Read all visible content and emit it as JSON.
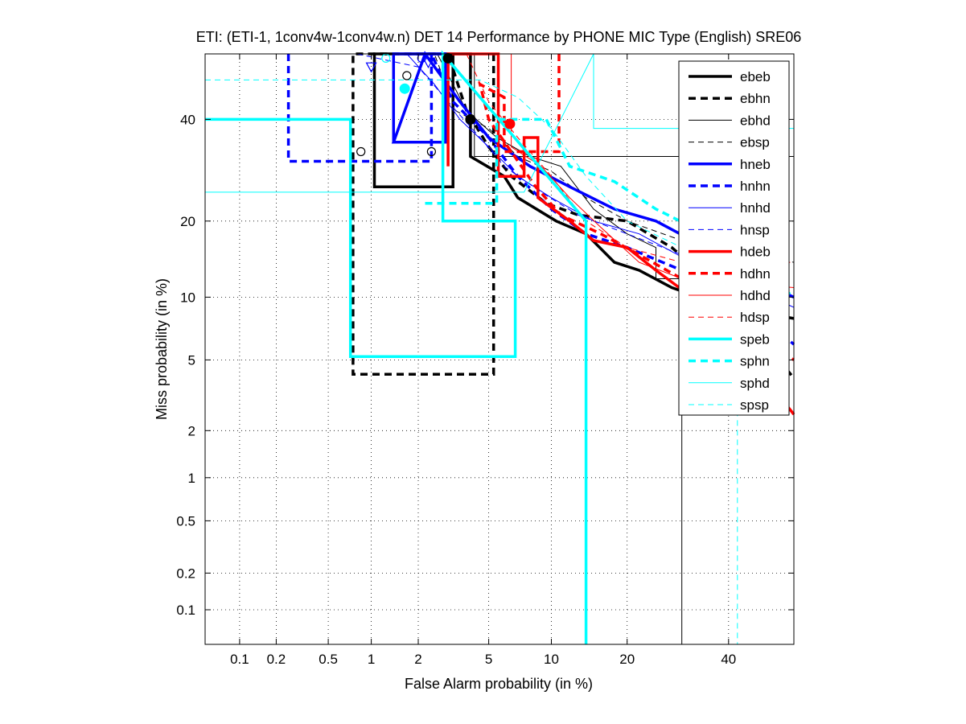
{
  "chart_data": {
    "type": "line",
    "title": "ETI: (ETI-1, 1conv4w-1conv4w.n) DET 14 Performance by PHONE MIC Type (English) SRE06",
    "xlabel": "False Alarm probability (in %)",
    "ylabel": "Miss probability (in %)",
    "xscale": "probit",
    "yscale": "probit",
    "xlim": [
      0.05,
      55
    ],
    "ylim": [
      0.05,
      55
    ],
    "xticks": [
      0.1,
      0.2,
      0.5,
      1,
      2,
      5,
      10,
      20,
      40
    ],
    "xtick_labels": [
      "0.1",
      "0.2",
      "0.5",
      "1",
      "2",
      "5",
      "10",
      "20",
      "40"
    ],
    "yticks": [
      0.1,
      0.2,
      0.5,
      1,
      2,
      5,
      10,
      20,
      40
    ],
    "ytick_labels": [
      "0.1",
      "0.2",
      "0.5",
      "1",
      "2",
      "5",
      "10",
      "20",
      "40"
    ],
    "grid": true,
    "legend_position": "top-right",
    "series": [
      {
        "name": "ebeb",
        "color": "#000000",
        "style": "solid",
        "width": 3.5,
        "points": [
          [
            3.2,
            55
          ],
          [
            3.2,
            26
          ],
          [
            1.05,
            26
          ],
          [
            1.05,
            55
          ],
          [
            4.0,
            55
          ],
          [
            4.0,
            32
          ],
          [
            6.0,
            28
          ],
          [
            7.0,
            24
          ],
          [
            10.5,
            20
          ],
          [
            14,
            18
          ],
          [
            18,
            14
          ],
          [
            22,
            13
          ],
          [
            28,
            11
          ],
          [
            40,
            9
          ],
          [
            55,
            8
          ]
        ]
      },
      {
        "name": "ebhn",
        "color": "#000000",
        "style": "dashed",
        "width": 3.5,
        "points": [
          [
            5.3,
            55
          ],
          [
            5.3,
            4.2
          ],
          [
            0.75,
            4.2
          ],
          [
            0.75,
            55
          ],
          [
            3.0,
            55
          ],
          [
            3.8,
            42
          ],
          [
            5.0,
            34
          ],
          [
            6.5,
            28
          ],
          [
            9.5,
            23
          ],
          [
            13,
            21
          ],
          [
            20,
            20
          ],
          [
            28,
            16
          ],
          [
            40,
            10
          ],
          [
            55,
            4
          ]
        ]
      },
      {
        "name": "ebhd",
        "color": "#000000",
        "style": "solid",
        "width": 1,
        "points": [
          [
            30,
            0.05
          ],
          [
            30,
            12
          ],
          [
            25,
            12
          ],
          [
            25,
            16
          ],
          [
            20,
            18
          ],
          [
            15,
            22
          ],
          [
            11,
            30
          ],
          [
            8,
            32
          ],
          [
            5.5,
            36
          ],
          [
            3.8,
            42
          ],
          [
            2.6,
            55
          ],
          [
            4.2,
            55
          ],
          [
            4.2,
            32
          ],
          [
            11,
            32
          ],
          [
            40,
            32
          ],
          [
            55,
            32
          ]
        ]
      },
      {
        "name": "ebsp",
        "color": "#000000",
        "style": "dashed",
        "width": 1,
        "points": [
          [
            0.05,
            55
          ],
          [
            1.0,
            55
          ],
          [
            2.5,
            55
          ],
          [
            3.3,
            42
          ],
          [
            5,
            38
          ],
          [
            7,
            32
          ],
          [
            10,
            29
          ],
          [
            14,
            24
          ],
          [
            20,
            20
          ],
          [
            30,
            17
          ],
          [
            55,
            14
          ]
        ]
      },
      {
        "name": "hneb",
        "color": "#0000ff",
        "style": "solid",
        "width": 3.5,
        "points": [
          [
            1.4,
            35
          ],
          [
            1.4,
            55
          ],
          [
            2.9,
            55
          ],
          [
            2.9,
            35
          ],
          [
            1.4,
            35
          ],
          [
            2.2,
            55
          ],
          [
            3.5,
            44
          ],
          [
            5,
            36
          ],
          [
            8,
            30
          ],
          [
            12,
            26
          ],
          [
            18,
            22
          ],
          [
            25,
            20
          ],
          [
            35,
            16
          ],
          [
            45,
            12
          ],
          [
            55,
            10
          ]
        ]
      },
      {
        "name": "hnhn",
        "color": "#0000ff",
        "style": "dashed",
        "width": 3.5,
        "points": [
          [
            0.25,
            55
          ],
          [
            0.25,
            31
          ],
          [
            2.4,
            31
          ],
          [
            2.4,
            55
          ],
          [
            3.2,
            44
          ],
          [
            5,
            36
          ],
          [
            7,
            28
          ],
          [
            10,
            22
          ],
          [
            14,
            18
          ],
          [
            20,
            16
          ],
          [
            30,
            13
          ],
          [
            45,
            9
          ],
          [
            55,
            6
          ]
        ]
      },
      {
        "name": "hnhd",
        "color": "#0000ff",
        "style": "solid",
        "width": 1,
        "points": [
          [
            1.7,
            55
          ],
          [
            2.5,
            48
          ],
          [
            3.5,
            40
          ],
          [
            5,
            34
          ],
          [
            7,
            28
          ],
          [
            10,
            24
          ],
          [
            15,
            20
          ],
          [
            22,
            18
          ],
          [
            32,
            14
          ],
          [
            45,
            11
          ],
          [
            55,
            9
          ]
        ]
      },
      {
        "name": "hnsp",
        "color": "#0000ff",
        "style": "dashed",
        "width": 1,
        "points": [
          [
            0.8,
            55
          ],
          [
            2.0,
            52
          ],
          [
            3.0,
            44
          ],
          [
            4.5,
            36
          ],
          [
            6,
            30
          ],
          [
            9,
            25
          ],
          [
            13,
            21
          ],
          [
            20,
            18
          ],
          [
            30,
            15
          ],
          [
            45,
            12
          ],
          [
            55,
            10
          ]
        ]
      },
      {
        "name": "hdeb",
        "color": "#ff0000",
        "style": "solid",
        "width": 3.5,
        "points": [
          [
            3.0,
            30
          ],
          [
            3.0,
            55
          ],
          [
            5.6,
            55
          ],
          [
            5.6,
            28
          ],
          [
            7.5,
            28
          ],
          [
            7.5,
            36
          ],
          [
            8.7,
            36
          ],
          [
            8.7,
            24
          ],
          [
            12,
            20
          ],
          [
            15,
            17
          ],
          [
            20,
            16
          ],
          [
            25,
            13
          ],
          [
            35,
            9
          ],
          [
            45,
            5
          ],
          [
            55,
            2.5
          ]
        ]
      },
      {
        "name": "hdhn",
        "color": "#ff0000",
        "style": "dashed",
        "width": 3.5,
        "points": [
          [
            10.8,
            55
          ],
          [
            10.8,
            33
          ],
          [
            6,
            33
          ],
          [
            6,
            45
          ],
          [
            4.5,
            48
          ],
          [
            5,
            40
          ],
          [
            6.5,
            33
          ],
          [
            8.5,
            26
          ],
          [
            11,
            21
          ],
          [
            16,
            18
          ],
          [
            22,
            15
          ],
          [
            30,
            12
          ],
          [
            40,
            8
          ],
          [
            55,
            5
          ]
        ]
      },
      {
        "name": "hdhd",
        "color": "#ff0000",
        "style": "solid",
        "width": 1,
        "points": [
          [
            6.5,
            55
          ],
          [
            6.5,
            34
          ],
          [
            9,
            30
          ],
          [
            12,
            24
          ],
          [
            16,
            19
          ],
          [
            22,
            14
          ],
          [
            30,
            12
          ],
          [
            55,
            11
          ]
        ]
      },
      {
        "name": "hdsp",
        "color": "#ff0000",
        "style": "dashed",
        "width": 1,
        "points": [
          [
            3.8,
            55
          ],
          [
            5,
            44
          ],
          [
            7,
            36
          ],
          [
            10,
            28
          ],
          [
            14,
            20
          ],
          [
            20,
            16
          ],
          [
            30,
            14
          ],
          [
            55,
            14
          ]
        ]
      },
      {
        "name": "speb",
        "color": "#00ffff",
        "style": "solid",
        "width": 3.5,
        "points": [
          [
            0.05,
            40
          ],
          [
            0.72,
            40
          ],
          [
            0.72,
            5.2
          ],
          [
            6.8,
            5.2
          ],
          [
            6.8,
            20
          ],
          [
            2.8,
            20
          ],
          [
            2.8,
            55
          ],
          [
            14,
            20
          ],
          [
            14,
            0.05
          ]
        ]
      },
      {
        "name": "sphn",
        "color": "#00ffff",
        "style": "dashed",
        "width": 3.5,
        "points": [
          [
            2.2,
            23
          ],
          [
            5.5,
            23
          ],
          [
            5.5,
            40
          ],
          [
            9.5,
            40
          ],
          [
            12,
            30
          ],
          [
            18,
            27
          ],
          [
            25,
            22
          ],
          [
            35,
            18
          ],
          [
            45,
            14
          ],
          [
            55,
            10
          ]
        ]
      },
      {
        "name": "sphd",
        "color": "#00ffff",
        "style": "solid",
        "width": 1,
        "points": [
          [
            0.05,
            25
          ],
          [
            7.5,
            25
          ],
          [
            15,
            55
          ],
          [
            15,
            38
          ],
          [
            30,
            38
          ],
          [
            55,
            38
          ],
          [
            55,
            0.05
          ]
        ]
      },
      {
        "name": "spsp",
        "color": "#00ffff",
        "style": "dashed",
        "width": 1,
        "points": [
          [
            0.05,
            49
          ],
          [
            4.5,
            49
          ],
          [
            7,
            45
          ],
          [
            10,
            38
          ],
          [
            14,
            28
          ],
          [
            20,
            20
          ],
          [
            30,
            16
          ],
          [
            42,
            13
          ],
          [
            42,
            0.05
          ]
        ]
      }
    ],
    "markers": [
      {
        "series": "ebeb",
        "shape": "filled-circle",
        "x": 3.0,
        "y": 54
      },
      {
        "series": "ebhn",
        "shape": "filled-circle",
        "x": 4.0,
        "y": 40
      },
      {
        "series": "ebhd",
        "shape": "open-circle",
        "x": 1.7,
        "y": 50
      },
      {
        "series": "ebhd",
        "shape": "open-circle",
        "x": 0.85,
        "y": 33
      },
      {
        "series": "ebhn",
        "shape": "open-circle",
        "x": 2.4,
        "y": 33
      },
      {
        "series": "hnhn",
        "shape": "open-triangle",
        "x": 1.0,
        "y": 52
      },
      {
        "series": "hnhd",
        "shape": "open-triangle",
        "x": 2.3,
        "y": 53
      },
      {
        "series": "speb",
        "shape": "filled-circle",
        "x": 1.65,
        "y": 47
      },
      {
        "series": "sphn",
        "shape": "open-circle",
        "x": 1.25,
        "y": 54
      },
      {
        "series": "hdeb",
        "shape": "filled-circle",
        "x": 6.4,
        "y": 39
      },
      {
        "series": "hnhd",
        "shape": "open-circle",
        "x": 2.1,
        "y": 54
      }
    ]
  }
}
